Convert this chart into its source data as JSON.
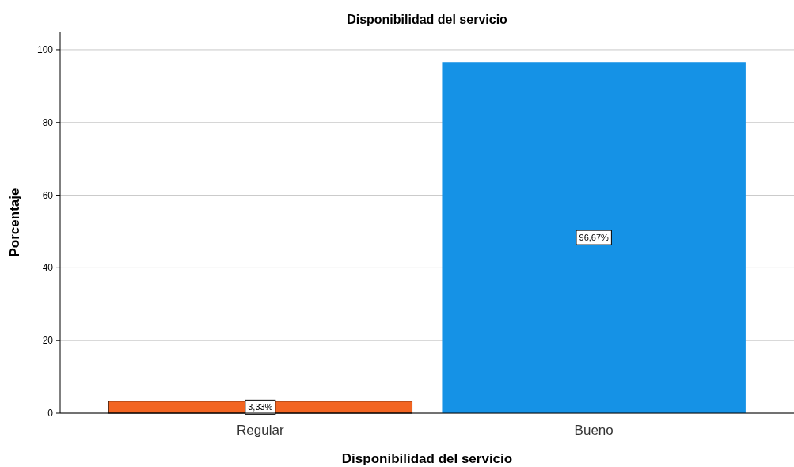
{
  "chart_data": {
    "type": "bar",
    "title": "Disponibilidad del servicio",
    "xlabel": "Disponibilidad del servicio",
    "ylabel": "Porcentaje",
    "categories": [
      "Regular",
      "Bueno"
    ],
    "values": [
      3.33,
      96.67
    ],
    "colors": [
      "#f26522",
      "#1592e6"
    ],
    "value_labels": [
      "3,33%",
      "96,67%"
    ],
    "ylim": [
      0,
      105
    ],
    "yticks": [
      0,
      20,
      40,
      60,
      80,
      100
    ],
    "grid": "y"
  }
}
